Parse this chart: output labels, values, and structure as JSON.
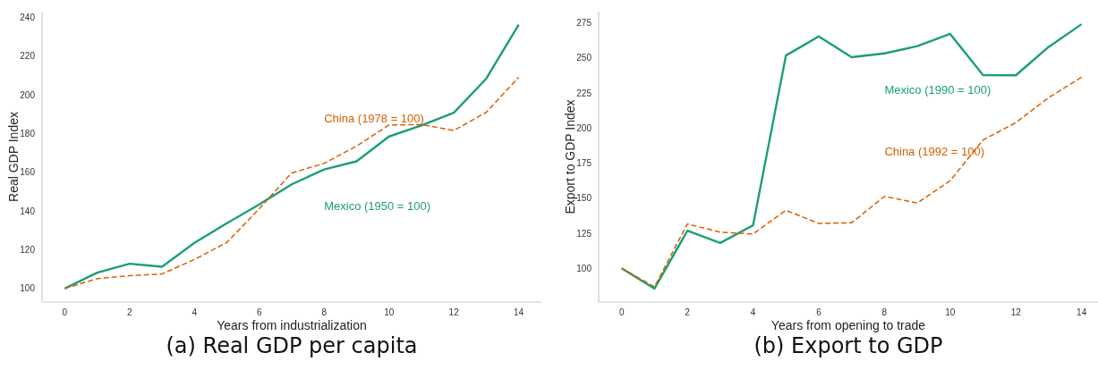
{
  "chart_data": [
    {
      "type": "line",
      "title": "(a) Real GDP per capita",
      "xlabel": "Years from industrialization",
      "ylabel": "Real GDP Index",
      "x": [
        0,
        1,
        2,
        3,
        4,
        5,
        6,
        7,
        8,
        9,
        10,
        11,
        12,
        13,
        14
      ],
      "xlim": [
        -0.7,
        14.7
      ],
      "xticks": [
        0,
        2,
        4,
        6,
        8,
        10,
        12,
        14
      ],
      "ylim": [
        93,
        243
      ],
      "yticks": [
        100,
        120,
        140,
        160,
        180,
        200,
        220,
        240
      ],
      "grid": false,
      "series": [
        {
          "name": "Mexico (1950 = 100)",
          "color": "#1b9e77",
          "line_style": "solid",
          "values": [
            100,
            108.2,
            112.8,
            111.2,
            123.6,
            133.7,
            143.4,
            153.8,
            161.5,
            165.7,
            178.5,
            184.2,
            190.8,
            208.4,
            236.3
          ]
        },
        {
          "name": "China (1978 = 100)",
          "color": "#d95f02",
          "line_style": "dashed",
          "values": [
            100,
            105.1,
            106.6,
            107.5,
            115,
            123.8,
            141.2,
            159.7,
            164.6,
            173.6,
            184.4,
            184.7,
            181.6,
            191,
            209.1
          ]
        }
      ]
    },
    {
      "type": "line",
      "title": "(b) Export to GDP",
      "xlabel": "Years from opening to trade",
      "ylabel": "Export to GDP Index",
      "x": [
        0,
        1,
        2,
        3,
        4,
        5,
        6,
        7,
        8,
        9,
        10,
        11,
        12,
        13,
        14
      ],
      "xlim": [
        -0.7,
        14.5
      ],
      "xticks": [
        0,
        2,
        4,
        6,
        8,
        10,
        12,
        14
      ],
      "ylim": [
        76,
        283
      ],
      "yticks": [
        100,
        125,
        150,
        175,
        200,
        225,
        250,
        275
      ],
      "grid": false,
      "series": [
        {
          "name": "Mexico (1990 = 100)",
          "color": "#1b9e77",
          "line_style": "solid",
          "values": [
            100,
            85.6,
            126.8,
            118.1,
            130.7,
            251.7,
            265.3,
            250.5,
            253.2,
            258.4,
            267.1,
            237.8,
            237.6,
            257.9,
            274
          ]
        },
        {
          "name": "China (1992 = 100)",
          "color": "#d95f02",
          "line_style": "dashed",
          "values": [
            100,
            86.9,
            131.7,
            125.8,
            124.5,
            141.4,
            132,
            132.5,
            151.3,
            146.6,
            162.5,
            191.5,
            203.9,
            221.7,
            236.3
          ]
        }
      ]
    }
  ]
}
